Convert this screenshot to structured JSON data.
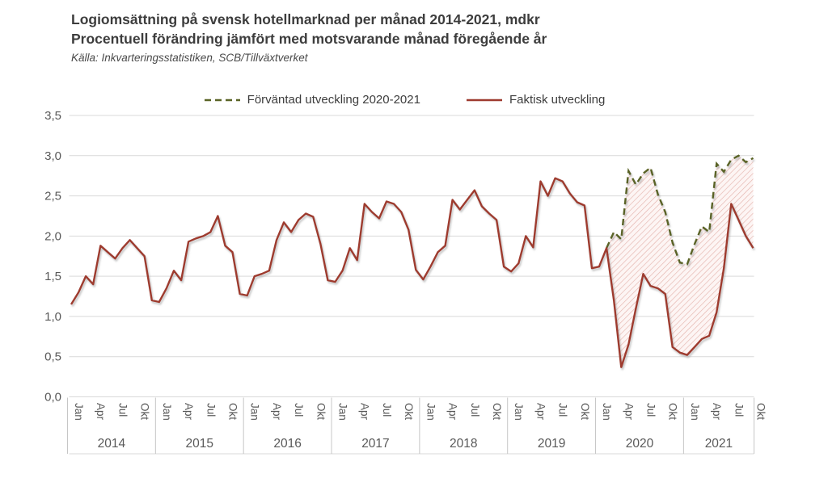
{
  "header": {
    "title_line1": "Logiomsättning på svensk hotellmarknad per månad 2014-2021, mdkr",
    "title_line2": "Procentuell förändring jämfört med motsvarande månad föregående år",
    "source": "Källa: Inkvarteringsstatistiken, SCB/Tillväxtverket"
  },
  "legend": {
    "expected_label": "Förväntad utveckling 2020-2021",
    "actual_label": "Faktisk utveckling"
  },
  "colors": {
    "actual_line": "#9e3a2f",
    "expected_line": "#5a6426",
    "hatch_line": "#e5b4ad",
    "hatch_bg": "#fdf5f4",
    "grid": "#d9d9d9",
    "axis": "#c6c6c6",
    "tick_text": "#595959",
    "title_text": "#3d3d3d"
  },
  "y_axis": {
    "tick_labels": [
      "0,0",
      "0,5",
      "1,0",
      "1,5",
      "2,0",
      "2,5",
      "3,0",
      "3,5"
    ],
    "min": 0,
    "max": 3.5,
    "step": 0.5
  },
  "x_axis": {
    "month_tick_labels": [
      "Jan",
      "Apr",
      "Jul",
      "Okt"
    ],
    "year_labels": [
      "2014",
      "2015",
      "2016",
      "2017",
      "2018",
      "2019",
      "2020",
      "2021"
    ]
  },
  "chart_data": {
    "type": "line",
    "title": "Logiomsättning på svensk hotellmarknad per månad 2014-2021, mdkr",
    "subtitle": "Procentuell förändring jämfört med motsvarande månad föregående år",
    "source": "Källa: Inkvarteringsstatistiken, SCB/Tillväxtverket",
    "x_unit": "month",
    "x_start": "2014-01",
    "x_end": "2021-10",
    "ylim": [
      0,
      3.5
    ],
    "grid": "horizontal",
    "legend_position": "top",
    "series": [
      {
        "name": "Faktisk utveckling",
        "style": "solid",
        "color": "#9e3a2f",
        "start": "2014-01",
        "values": [
          1.15,
          1.3,
          1.5,
          1.4,
          1.88,
          1.8,
          1.72,
          1.85,
          1.95,
          1.85,
          1.75,
          1.2,
          1.18,
          1.35,
          1.57,
          1.45,
          1.93,
          1.97,
          2.0,
          2.05,
          2.25,
          1.88,
          1.8,
          1.28,
          1.26,
          1.5,
          1.53,
          1.57,
          1.95,
          2.17,
          2.05,
          2.2,
          2.28,
          2.24,
          1.9,
          1.45,
          1.43,
          1.57,
          1.85,
          1.7,
          2.4,
          2.3,
          2.22,
          2.43,
          2.4,
          2.3,
          2.08,
          1.58,
          1.46,
          1.62,
          1.8,
          1.88,
          2.45,
          2.33,
          2.45,
          2.57,
          2.37,
          2.28,
          2.2,
          1.62,
          1.56,
          1.66,
          2.0,
          1.86,
          2.68,
          2.5,
          2.72,
          2.68,
          2.53,
          2.42,
          2.38,
          1.6,
          1.62,
          1.85,
          1.2,
          0.37,
          0.65,
          1.1,
          1.53,
          1.38,
          1.35,
          1.28,
          0.62,
          0.55,
          0.52,
          0.62,
          0.72,
          0.76,
          1.05,
          1.6,
          2.4,
          2.2,
          2.0,
          1.85
        ]
      },
      {
        "name": "Förväntad utveckling 2020-2021",
        "style": "dashed",
        "color": "#5a6426",
        "start": "2020-02",
        "values": [
          1.85,
          2.05,
          1.96,
          2.81,
          2.64,
          2.78,
          2.85,
          2.52,
          2.3,
          1.92,
          1.67,
          1.65,
          1.9,
          2.12,
          2.05,
          2.9,
          2.8,
          2.95,
          3.0,
          2.92,
          2.97
        ]
      }
    ],
    "fill_between": {
      "between": [
        "Förväntad utveckling 2020-2021",
        "Faktisk utveckling"
      ],
      "from": "2020-02",
      "to": "2021-10",
      "style": "diagonal-hatch"
    }
  }
}
